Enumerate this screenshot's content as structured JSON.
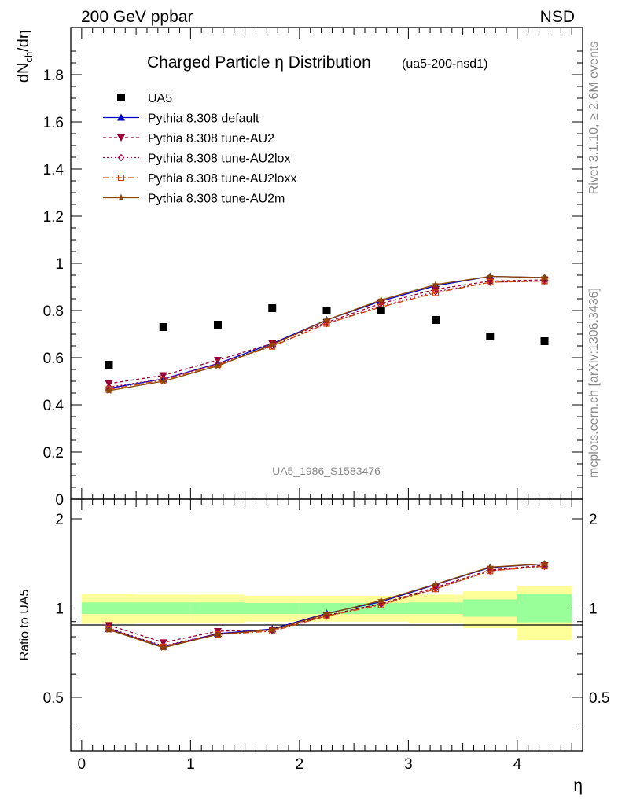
{
  "header": {
    "left": "200 GeV ppbar",
    "right": "NSD"
  },
  "side_labels": {
    "rivet": "Rivet 3.1.10, ≥ 2.6M events",
    "mcplots": "mcplots.cern.ch [arXiv:1306.3436]"
  },
  "chart_data": [
    {
      "type": "scatter",
      "title_main": "Charged Particle η Distribution",
      "title_sub": "(ua5-200-nsd1)",
      "ylabel": "dN_ch/dη",
      "watermark": "UA5_1986_S1583476",
      "xlim": [
        -0.1,
        4.6
      ],
      "ylim": [
        0,
        2.0
      ],
      "y_ticks": [
        "0",
        "0.2",
        "0.4",
        "0.6",
        "0.8",
        "1",
        "1.2",
        "1.4",
        "1.6",
        "1.8"
      ],
      "x": [
        0.25,
        0.75,
        1.25,
        1.75,
        2.25,
        2.75,
        3.25,
        3.75,
        4.25
      ],
      "legend": [
        {
          "name": "UA5",
          "color": "#000000",
          "marker": "square",
          "dash": ""
        },
        {
          "name": "Pythia 8.308 default",
          "color": "#0000cc",
          "marker": "triangle-up",
          "dash": ""
        },
        {
          "name": "Pythia 8.308 tune-AU2",
          "color": "#990033",
          "marker": "triangle-down",
          "dash": "4,3"
        },
        {
          "name": "Pythia 8.308 tune-AU2lox",
          "color": "#aa0044",
          "marker": "diamond-open",
          "dash": "2,3"
        },
        {
          "name": "Pythia 8.308 tune-AU2loxx",
          "color": "#cc4400",
          "marker": "square-open",
          "dash": "8,3,2,3"
        },
        {
          "name": "Pythia 8.308 tune-AU2m",
          "color": "#8b4500",
          "marker": "star",
          "dash": ""
        }
      ],
      "data": {
        "name": "UA5",
        "values": [
          0.57,
          0.73,
          0.74,
          0.81,
          0.8,
          0.8,
          0.76,
          0.69,
          0.67
        ]
      },
      "series": [
        {
          "name": "Pythia 8.308 default",
          "values": [
            0.47,
            0.51,
            0.575,
            0.66,
            0.76,
            0.84,
            0.905,
            0.945,
            0.94
          ]
        },
        {
          "name": "Pythia 8.308 tune-AU2",
          "values": [
            0.49,
            0.525,
            0.59,
            0.66,
            0.75,
            0.83,
            0.89,
            0.925,
            0.93
          ]
        },
        {
          "name": "Pythia 8.308 tune-AU2lox",
          "values": [
            0.475,
            0.51,
            0.575,
            0.65,
            0.745,
            0.82,
            0.88,
            0.92,
            0.925
          ]
        },
        {
          "name": "Pythia 8.308 tune-AU2loxx",
          "values": [
            0.465,
            0.505,
            0.57,
            0.648,
            0.745,
            0.815,
            0.875,
            0.92,
            0.925
          ]
        },
        {
          "name": "Pythia 8.308 tune-AU2m",
          "values": [
            0.46,
            0.5,
            0.565,
            0.655,
            0.76,
            0.845,
            0.91,
            0.945,
            0.94
          ]
        }
      ]
    },
    {
      "type": "line",
      "ylabel": "Ratio to UA5",
      "xlabel": "η",
      "xlim": [
        -0.1,
        4.6
      ],
      "ylim": [
        0.33,
        2.33
      ],
      "y_ticks": [
        "0.5",
        "1",
        "2"
      ],
      "x_ticks": [
        "0",
        "1",
        "2",
        "3",
        "4"
      ],
      "bands": [
        {
          "xmin": 0.0,
          "xmax": 0.5,
          "inner": [
            0.955,
            1.045
          ],
          "outer": [
            0.885,
            1.115
          ]
        },
        {
          "xmin": 0.5,
          "xmax": 1.0,
          "inner": [
            0.955,
            1.045
          ],
          "outer": [
            0.89,
            1.11
          ]
        },
        {
          "xmin": 1.0,
          "xmax": 1.5,
          "inner": [
            0.955,
            1.045
          ],
          "outer": [
            0.89,
            1.11
          ]
        },
        {
          "xmin": 1.5,
          "xmax": 2.0,
          "inner": [
            0.955,
            1.04
          ],
          "outer": [
            0.9,
            1.1
          ]
        },
        {
          "xmin": 2.0,
          "xmax": 2.5,
          "inner": [
            0.955,
            1.04
          ],
          "outer": [
            0.9,
            1.1
          ]
        },
        {
          "xmin": 2.5,
          "xmax": 3.0,
          "inner": [
            0.955,
            1.04
          ],
          "outer": [
            0.9,
            1.1
          ]
        },
        {
          "xmin": 3.0,
          "xmax": 3.5,
          "inner": [
            0.955,
            1.045
          ],
          "outer": [
            0.89,
            1.11
          ]
        },
        {
          "xmin": 3.5,
          "xmax": 4.0,
          "inner": [
            0.935,
            1.07
          ],
          "outer": [
            0.855,
            1.14
          ]
        },
        {
          "xmin": 4.0,
          "xmax": 4.5,
          "inner": [
            0.895,
            1.115
          ],
          "outer": [
            0.78,
            1.19
          ]
        }
      ],
      "series": [
        {
          "name": "Pythia 8.308 default",
          "values": [
            0.85,
            0.74,
            0.82,
            0.85,
            0.96,
            1.05,
            1.2,
            1.37,
            1.41
          ]
        },
        {
          "name": "Pythia 8.308 tune-AU2",
          "values": [
            0.875,
            0.765,
            0.835,
            0.845,
            0.945,
            1.035,
            1.175,
            1.345,
            1.395
          ]
        },
        {
          "name": "Pythia 8.308 tune-AU2lox",
          "values": [
            0.855,
            0.745,
            0.82,
            0.84,
            0.94,
            1.03,
            1.165,
            1.335,
            1.385
          ]
        },
        {
          "name": "Pythia 8.308 tune-AU2loxx",
          "values": [
            0.85,
            0.74,
            0.815,
            0.835,
            0.94,
            1.025,
            1.16,
            1.335,
            1.385
          ]
        },
        {
          "name": "Pythia 8.308 tune-AU2m",
          "values": [
            0.845,
            0.735,
            0.815,
            0.845,
            0.955,
            1.06,
            1.205,
            1.375,
            1.41
          ]
        }
      ]
    }
  ]
}
